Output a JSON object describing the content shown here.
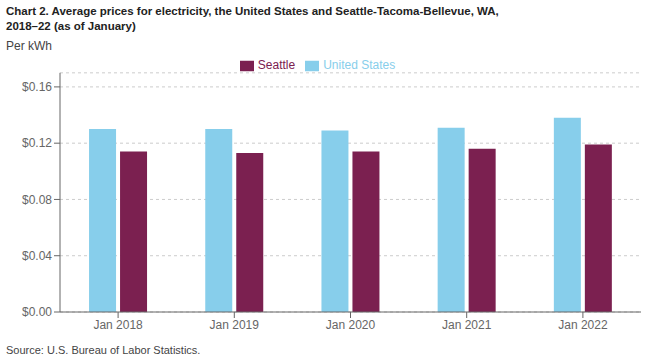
{
  "chart_data": {
    "type": "bar",
    "title": "Chart 2. Average prices for electricity, the United States and Seattle-Tacoma-Bellevue, WA,",
    "subtitle": "2018–22 (as of January)",
    "ylabel": "Per kWh",
    "annotations": [
      "Source: U.S. Bureau of Labor Statistics."
    ],
    "categories": [
      "Jan 2018",
      "Jan 2019",
      "Jan 2020",
      "Jan 2021",
      "Jan 2022"
    ],
    "series": [
      {
        "name": "United States",
        "color": "#87CEEB",
        "values": [
          0.13,
          0.13,
          0.129,
          0.131,
          0.138
        ]
      },
      {
        "name": "Seattle",
        "color": "#7B2050",
        "values": [
          0.114,
          0.113,
          0.114,
          0.116,
          0.119
        ]
      }
    ],
    "ylim": [
      0,
      0.17
    ],
    "yticks": [
      {
        "value": 0,
        "label": "$0.00"
      },
      {
        "value": 0.04,
        "label": "$0.04"
      },
      {
        "value": 0.08,
        "label": "$0.08"
      },
      {
        "value": 0.12,
        "label": "$0.12"
      },
      {
        "value": 0.16,
        "label": "$0.16"
      }
    ],
    "grid": true,
    "legend": "top"
  }
}
